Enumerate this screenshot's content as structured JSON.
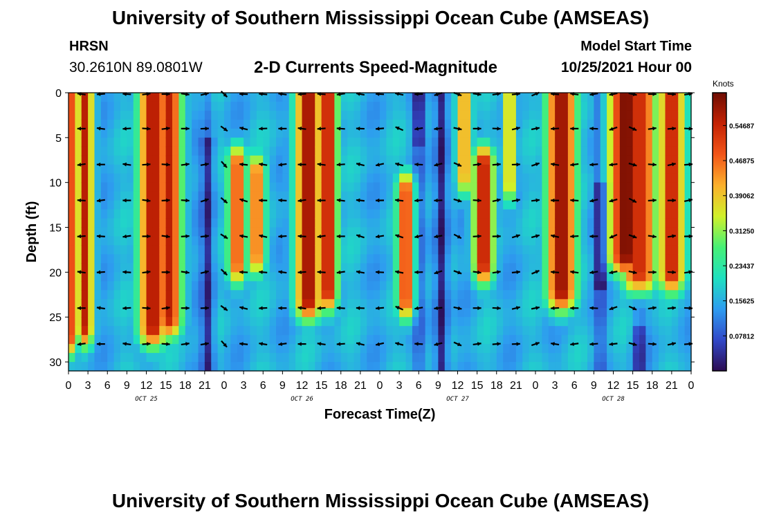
{
  "header": {
    "title": "University of Southern Mississippi Ocean Cube (AMSEAS)",
    "station": "HRSN",
    "coordinates": "30.2610N  89.0801W",
    "plot_title": "2-D Currents Speed-Magnitude",
    "model_start_label": "Model Start Time",
    "model_start_value": "10/25/2021 Hour 00"
  },
  "footer": {
    "title": "University of Southern Mississippi Ocean Cube (AMSEAS)"
  },
  "chart_data": {
    "type": "heatmap",
    "title": "2-D Currents Speed-Magnitude",
    "xlabel": "Forecast Time(Z)",
    "ylabel": "Depth (ft)",
    "x_ticks": [
      "0",
      "3",
      "6",
      "9",
      "12",
      "15",
      "18",
      "21",
      "0",
      "3",
      "6",
      "9",
      "12",
      "15",
      "18",
      "21",
      "0",
      "3",
      "6",
      "9",
      "12",
      "15",
      "18",
      "21",
      "0",
      "3",
      "6",
      "9",
      "12",
      "15",
      "18",
      "21",
      "0"
    ],
    "x_range_hours": [
      0,
      96
    ],
    "date_labels": [
      {
        "label": "OCT 25",
        "hour": 12
      },
      {
        "label": "OCT 26",
        "hour": 36
      },
      {
        "label": "OCT 27",
        "hour": 60
      },
      {
        "label": "OCT 28",
        "hour": 84
      }
    ],
    "y_ticks": [
      0,
      5,
      10,
      15,
      20,
      25,
      30
    ],
    "y_range_ft": [
      0,
      31
    ],
    "colorbar": {
      "label": "Knots",
      "ticks": [
        "0.54687",
        "0.46875",
        "0.39062",
        "0.31250",
        "0.23437",
        "0.15625",
        "0.07812"
      ],
      "range": [
        0,
        0.62
      ],
      "colors": [
        "#2c0c52",
        "#3148c8",
        "#2e9cf0",
        "#1ee0c0",
        "#46f076",
        "#d0f02a",
        "#fbb02c",
        "#f25518",
        "#c42204",
        "#6e0d03"
      ]
    },
    "speed_ridges": [
      {
        "hour": 0,
        "amp": 0.56,
        "width": 1.2,
        "d0": 0,
        "d1": 27
      },
      {
        "hour": 2.5,
        "amp": 0.56,
        "width": 1.3,
        "d0": 0,
        "d1": 26
      },
      {
        "hour": 13,
        "amp": 0.58,
        "width": 2.2,
        "d0": 0,
        "d1": 26
      },
      {
        "hour": 15.5,
        "amp": 0.56,
        "width": 2.0,
        "d0": 0,
        "d1": 25
      },
      {
        "hour": 26,
        "amp": 0.5,
        "width": 1.5,
        "d0": 8,
        "d1": 19
      },
      {
        "hour": 29,
        "amp": 0.48,
        "width": 1.4,
        "d0": 9,
        "d1": 18
      },
      {
        "hour": 37,
        "amp": 0.6,
        "width": 2.0,
        "d0": 0,
        "d1": 23
      },
      {
        "hour": 40,
        "amp": 0.58,
        "width": 1.5,
        "d0": 0,
        "d1": 22
      },
      {
        "hour": 52,
        "amp": 0.52,
        "width": 1.4,
        "d0": 11,
        "d1": 23
      },
      {
        "hour": 61,
        "amp": 0.45,
        "width": 1.2,
        "d0": 0,
        "d1": 9
      },
      {
        "hour": 64,
        "amp": 0.58,
        "width": 1.6,
        "d0": 8,
        "d1": 19
      },
      {
        "hour": 68,
        "amp": 0.42,
        "width": 1.0,
        "d0": 0,
        "d1": 10
      },
      {
        "hour": 76,
        "amp": 0.6,
        "width": 2.3,
        "d0": 0,
        "d1": 22
      },
      {
        "hour": 86,
        "amp": 0.62,
        "width": 2.8,
        "d0": 0,
        "d1": 18
      },
      {
        "hour": 88,
        "amp": 0.58,
        "width": 2.6,
        "d0": 0,
        "d1": 20
      },
      {
        "hour": 93,
        "amp": 0.56,
        "width": 2.0,
        "d0": 0,
        "d1": 20
      }
    ],
    "speed_troughs": [
      {
        "hour": 21.5,
        "depth0": 5,
        "depth1": 31,
        "amp": 0.14
      },
      {
        "hour": 54,
        "depth0": 0,
        "depth1": 6,
        "amp": 0.13
      },
      {
        "hour": 57.5,
        "depth0": 0,
        "depth1": 31,
        "amp": 0.16
      },
      {
        "hour": 82,
        "depth0": 10,
        "depth1": 22,
        "amp": 0.16
      },
      {
        "hour": 88,
        "depth0": 26,
        "depth1": 31,
        "amp": 0.12
      }
    ],
    "vector_times_hours": [
      2,
      5,
      9,
      12,
      15,
      18,
      21,
      24,
      27,
      30,
      33,
      36,
      39,
      42,
      45,
      48,
      51,
      54,
      57,
      60,
      63,
      66,
      69,
      72,
      75,
      78,
      81,
      84,
      87,
      90,
      93,
      96
    ],
    "vector_depths_ft": [
      0,
      4,
      8,
      12,
      16,
      20,
      24,
      28
    ],
    "vector_direction_by_time_deg": [
      180,
      180,
      180,
      0,
      0,
      0,
      10,
      -40,
      170,
      175,
      180,
      180,
      180,
      180,
      170,
      185,
      165,
      185,
      190,
      -20,
      0,
      5,
      10,
      15,
      175,
      180,
      185,
      195,
      -20,
      0,
      5,
      5
    ]
  }
}
